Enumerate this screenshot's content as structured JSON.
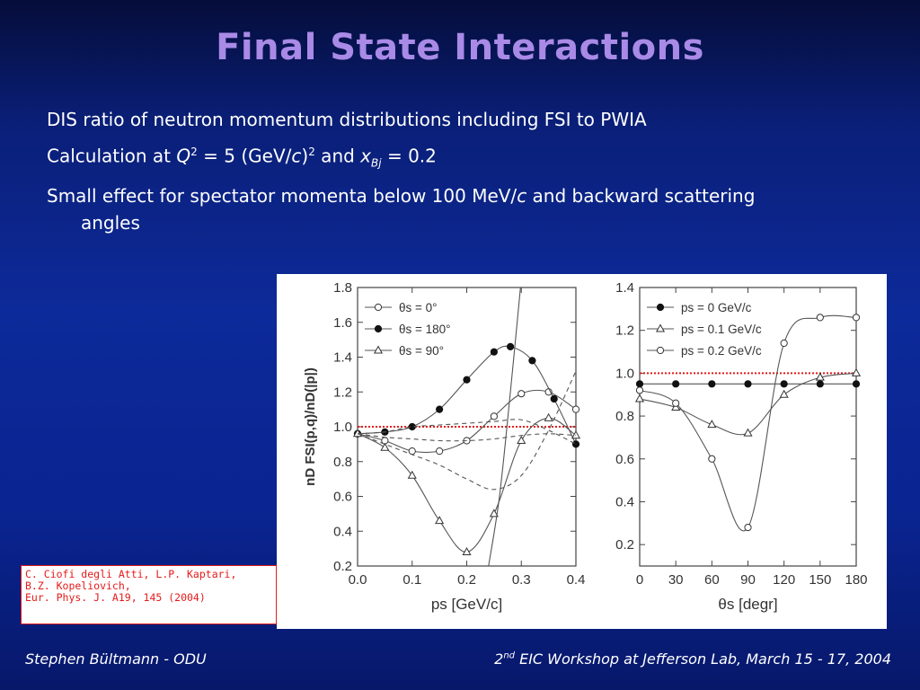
{
  "slide": {
    "title": "Final State Interactions",
    "bullets": {
      "b1": "DIS ratio of neutron momentum distributions including FSI to PWIA",
      "b2": {
        "prefix": "Calculation at ",
        "q": "Q",
        "q_exp": "2",
        "mid1": " = 5 (GeV/",
        "c": "c",
        "mid2": ")",
        "exp2": "2",
        "mid3": " and ",
        "x": "x",
        "x_sub": "Bj",
        "suffix": " = 0.2"
      },
      "b3": {
        "prefix": "Small effect for spectator momenta below 100 MeV/",
        "c": "c",
        "suffix": " and backward scattering angles"
      }
    },
    "citation": "C. Ciofi degli Atti, L.P. Kaptari,\nB.Z. Kopeliovich,\nEur. Phys. J. A19, 145 (2004)",
    "footer_left": "Stephen Bültmann - ODU",
    "footer_right": {
      "num": "2",
      "sup": "nd",
      "rest": " EIC Workshop at Jefferson Lab, March 15 - 17, 2004"
    }
  },
  "chart_data": [
    {
      "type": "line",
      "xlabel": "p_s [GeV/c]",
      "ylabel": "n_D^FSI(p,q)/n_D(|p|)",
      "xlim": [
        0.0,
        0.4
      ],
      "ylim": [
        0.2,
        1.8
      ],
      "xticks": [
        "0.0",
        "0.1",
        "0.2",
        "0.3",
        "0.4"
      ],
      "yticks": [
        "0.2",
        "0.4",
        "0.6",
        "0.8",
        "1.0",
        "1.2",
        "1.4",
        "1.6",
        "1.8"
      ],
      "legend_position": "top-left",
      "legend": [
        "θ_s = 0°",
        "θ_s = 180°",
        "θ_s = 90°"
      ],
      "reference_line": 1.0,
      "series": [
        {
          "name": "θ_s = 0°",
          "marker": "circle-open",
          "x": [
            0.0,
            0.05,
            0.1,
            0.15,
            0.2,
            0.25,
            0.3,
            0.35,
            0.4
          ],
          "y": [
            0.96,
            0.92,
            0.86,
            0.86,
            0.92,
            1.06,
            1.19,
            1.2,
            1.1
          ]
        },
        {
          "name": "θ_s = 180°",
          "marker": "circle-filled",
          "x": [
            0.0,
            0.05,
            0.1,
            0.15,
            0.2,
            0.25,
            0.28,
            0.32,
            0.36,
            0.4
          ],
          "y": [
            0.96,
            0.97,
            1.0,
            1.1,
            1.27,
            1.43,
            1.46,
            1.38,
            1.16,
            0.9
          ]
        },
        {
          "name": "θ_s = 90°",
          "marker": "triangle-open",
          "x": [
            0.0,
            0.05,
            0.1,
            0.15,
            0.2,
            0.25,
            0.3,
            0.35,
            0.4
          ],
          "y": [
            0.96,
            0.88,
            0.72,
            0.46,
            0.28,
            0.5,
            0.92,
            1.05,
            0.95
          ]
        },
        {
          "name": "",
          "style": "dashed",
          "x": [
            0.0,
            0.05,
            0.1,
            0.15,
            0.2,
            0.25,
            0.3,
            0.35,
            0.4
          ],
          "y": [
            0.96,
            0.97,
            1.0,
            1.01,
            1.02,
            1.03,
            1.04,
            0.98,
            0.9
          ]
        },
        {
          "name": "",
          "style": "dashed",
          "x": [
            0.0,
            0.05,
            0.1,
            0.15,
            0.2,
            0.25,
            0.3,
            0.35,
            0.4
          ],
          "y": [
            0.96,
            0.94,
            0.93,
            0.92,
            0.92,
            0.93,
            0.95,
            0.96,
            0.95
          ]
        },
        {
          "name": "",
          "style": "dashed",
          "x": [
            0.0,
            0.05,
            0.1,
            0.15,
            0.2,
            0.25,
            0.3,
            0.35,
            0.4
          ],
          "y": [
            0.96,
            0.9,
            0.84,
            0.78,
            0.7,
            0.64,
            0.72,
            0.98,
            1.32
          ]
        },
        {
          "name": "",
          "style": "steep",
          "x": [
            0.24,
            0.26,
            0.28,
            0.3
          ],
          "y": [
            0.2,
            0.6,
            1.2,
            1.85
          ]
        }
      ]
    },
    {
      "type": "line",
      "xlabel": "θ_s [degr]",
      "ylabel": "",
      "xlim": [
        0,
        180
      ],
      "ylim": [
        0.1,
        1.4
      ],
      "xticks": [
        "0",
        "30",
        "60",
        "90",
        "120",
        "150",
        "180"
      ],
      "yticks": [
        "0.2",
        "0.4",
        "0.6",
        "0.8",
        "1.0",
        "1.2",
        "1.4"
      ],
      "legend_position": "top-left",
      "legend": [
        "p_s = 0   GeV/c",
        "p_s = 0.1 GeV/c",
        "p_s = 0.2 GeV/c"
      ],
      "reference_line": 1.0,
      "series": [
        {
          "name": "p_s = 0   GeV/c",
          "marker": "circle-filled",
          "x": [
            0,
            30,
            60,
            90,
            120,
            150,
            180
          ],
          "y": [
            0.95,
            0.95,
            0.95,
            0.95,
            0.95,
            0.95,
            0.95
          ]
        },
        {
          "name": "p_s = 0.1 GeV/c",
          "marker": "triangle-open",
          "x": [
            0,
            30,
            60,
            90,
            120,
            150,
            180
          ],
          "y": [
            0.88,
            0.84,
            0.76,
            0.72,
            0.9,
            0.98,
            1.0
          ]
        },
        {
          "name": "p_s = 0.2 GeV/c",
          "marker": "circle-open",
          "x": [
            0,
            30,
            60,
            90,
            120,
            150,
            180
          ],
          "y": [
            0.92,
            0.86,
            0.6,
            0.28,
            1.14,
            1.26,
            1.26
          ]
        }
      ]
    }
  ]
}
